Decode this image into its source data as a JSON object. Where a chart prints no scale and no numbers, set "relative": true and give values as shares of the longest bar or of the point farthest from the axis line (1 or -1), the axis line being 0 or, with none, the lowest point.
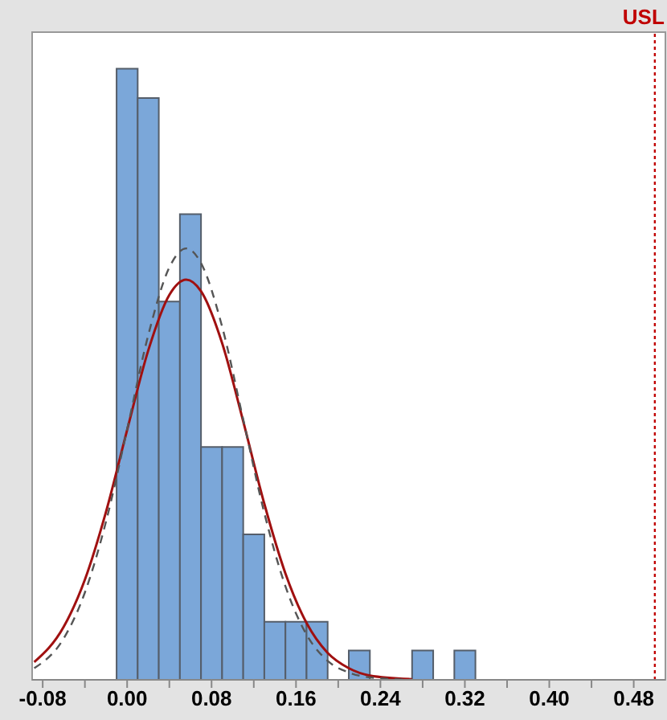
{
  "chart_data": {
    "type": "histogram",
    "relative": true,
    "bins": [
      -0.01,
      0.01,
      0.03,
      0.05,
      0.07,
      0.09,
      0.11,
      0.13,
      0.15,
      0.17,
      0.19,
      0.21,
      0.23,
      0.25,
      0.27,
      0.29,
      0.31,
      0.33
    ],
    "values": [
      1,
      0.952,
      0.619,
      0.762,
      0.381,
      0.381,
      0.238,
      0.095,
      0.095,
      0.095,
      0,
      0.048,
      0,
      0,
      0.048,
      0,
      0.048
    ],
    "color": "#7ba7d9",
    "series": [
      {
        "type": "line",
        "color": "#a01010",
        "line_style": "solid",
        "x": [
          -0.088,
          -0.06,
          -0.04,
          -0.02,
          0,
          0.02,
          0.04,
          0.056,
          0.07,
          0.09,
          0.11,
          0.13,
          0.15,
          0.17,
          0.19,
          0.21,
          0.23,
          0.27
        ],
        "values": [
          0.029,
          0.087,
          0.164,
          0.275,
          0.409,
          0.539,
          0.63,
          0.655,
          0.636,
          0.551,
          0.423,
          0.288,
          0.174,
          0.093,
          0.044,
          0.019,
          0.007,
          0.001
        ]
      },
      {
        "type": "line",
        "color": "#555555",
        "line_style": "dashed",
        "x": [
          -0.088,
          -0.06,
          -0.04,
          -0.02,
          0,
          0.02,
          0.04,
          0.056,
          0.07,
          0.09,
          0.11,
          0.13,
          0.15,
          0.17,
          0.19,
          0.21,
          0.23,
          0.27
        ],
        "values": [
          0.019,
          0.068,
          0.143,
          0.259,
          0.41,
          0.564,
          0.675,
          0.706,
          0.682,
          0.578,
          0.426,
          0.273,
          0.153,
          0.074,
          0.031,
          0.012,
          0.004,
          0
        ]
      }
    ],
    "ref_lines": [
      {
        "axis": "x",
        "value": 0.5,
        "label": "USL",
        "color": "#c00000",
        "line_style": "dotted"
      }
    ],
    "xlim": [
      -0.09,
      0.51
    ],
    "xticks": [
      {
        "value": -0.08,
        "label": "-0.08"
      },
      {
        "value": -0.04,
        "label": null
      },
      {
        "value": 0,
        "label": "0.00"
      },
      {
        "value": 0.04,
        "label": null
      },
      {
        "value": 0.08,
        "label": "0.08"
      },
      {
        "value": 0.12,
        "label": null
      },
      {
        "value": 0.16,
        "label": "0.16"
      },
      {
        "value": 0.2,
        "label": null
      },
      {
        "value": 0.24,
        "label": "0.24"
      },
      {
        "value": 0.28,
        "label": null
      },
      {
        "value": 0.32,
        "label": "0.32"
      },
      {
        "value": 0.36,
        "label": null
      },
      {
        "value": 0.4,
        "label": "0.40"
      },
      {
        "value": 0.44,
        "label": null
      },
      {
        "value": 0.48,
        "label": "0.48"
      }
    ],
    "grid": false
  }
}
